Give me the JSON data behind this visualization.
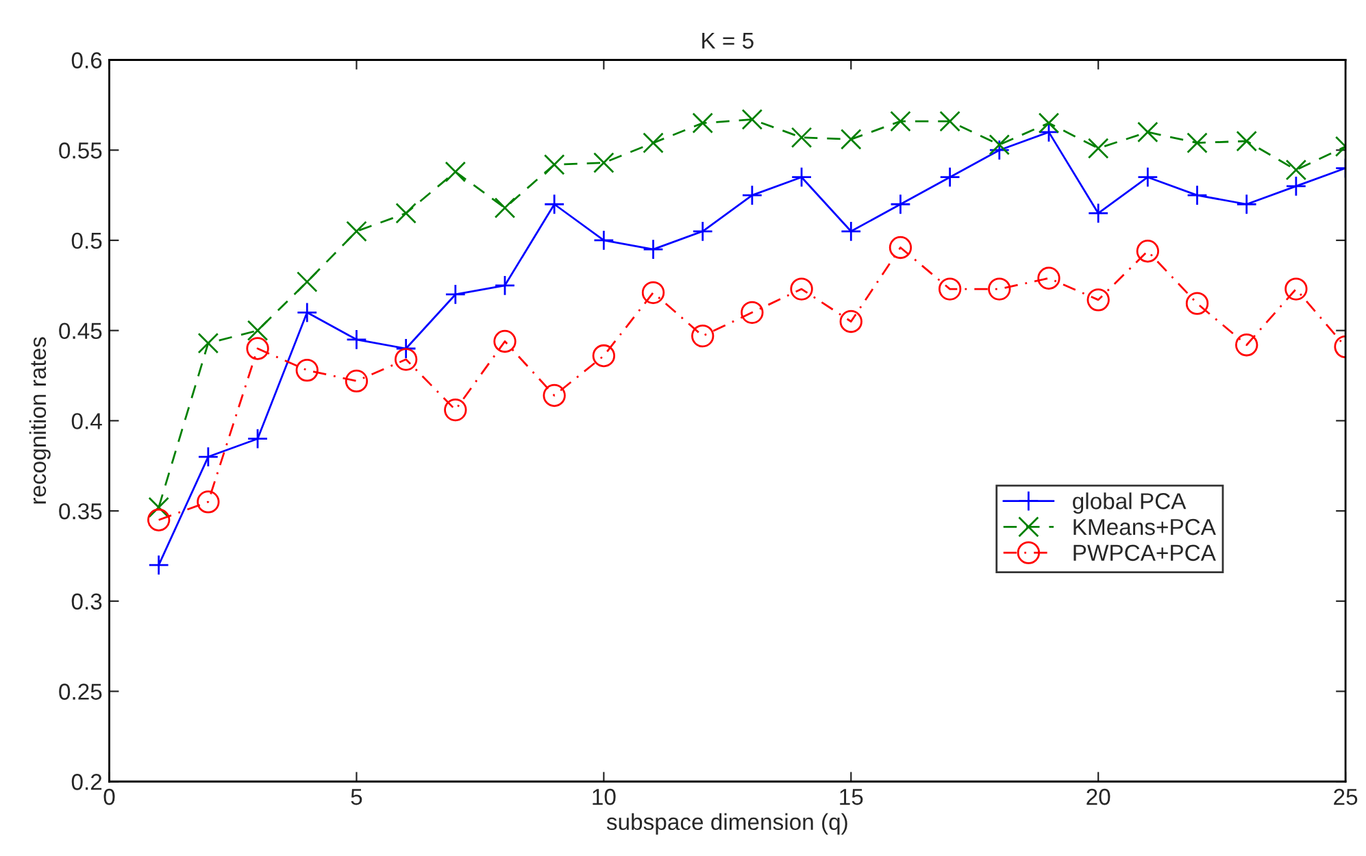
{
  "chart_data": {
    "type": "line",
    "title": "K = 5",
    "xlabel": "subspace dimension (q)",
    "ylabel": "recognition rates",
    "x": [
      1,
      2,
      3,
      4,
      5,
      6,
      7,
      8,
      9,
      10,
      11,
      12,
      13,
      14,
      15,
      16,
      17,
      18,
      19,
      20,
      21,
      22,
      23,
      24,
      25
    ],
    "series": [
      {
        "name": "global PCA",
        "color": "#0000ff",
        "marker": "plus",
        "line_style": "solid",
        "values": [
          0.32,
          0.38,
          0.39,
          0.46,
          0.445,
          0.44,
          0.47,
          0.475,
          0.52,
          0.5,
          0.495,
          0.505,
          0.525,
          0.535,
          0.505,
          0.52,
          0.535,
          0.55,
          0.56,
          0.515,
          0.535,
          0.525,
          0.52,
          0.53,
          0.54
        ]
      },
      {
        "name": "KMeans+PCA",
        "color": "#008000",
        "marker": "cross",
        "line_style": "dashed",
        "values": [
          0.352,
          0.443,
          0.45,
          0.477,
          0.505,
          0.515,
          0.538,
          0.518,
          0.542,
          0.543,
          0.554,
          0.565,
          0.567,
          0.557,
          0.556,
          0.566,
          0.566,
          0.553,
          0.565,
          0.551,
          0.56,
          0.554,
          0.555,
          0.539,
          0.552
        ]
      },
      {
        "name": "PWPCA+PCA",
        "color": "#ff0000",
        "marker": "circle",
        "line_style": "dashdot",
        "values": [
          0.345,
          0.355,
          0.44,
          0.428,
          0.422,
          0.434,
          0.406,
          0.444,
          0.414,
          0.436,
          0.471,
          0.447,
          0.46,
          0.473,
          0.455,
          0.496,
          0.473,
          0.473,
          0.479,
          0.467,
          0.494,
          0.465,
          0.442,
          0.473,
          0.441
        ]
      }
    ],
    "xlim": [
      0,
      25
    ],
    "xticks": [
      0,
      5,
      10,
      15,
      20,
      25
    ],
    "ylim": [
      0.2,
      0.6
    ],
    "yticks": [
      0.2,
      0.25,
      0.3,
      0.35,
      0.4,
      0.45,
      0.5,
      0.55,
      0.6
    ],
    "grid": false,
    "legend": "right"
  }
}
